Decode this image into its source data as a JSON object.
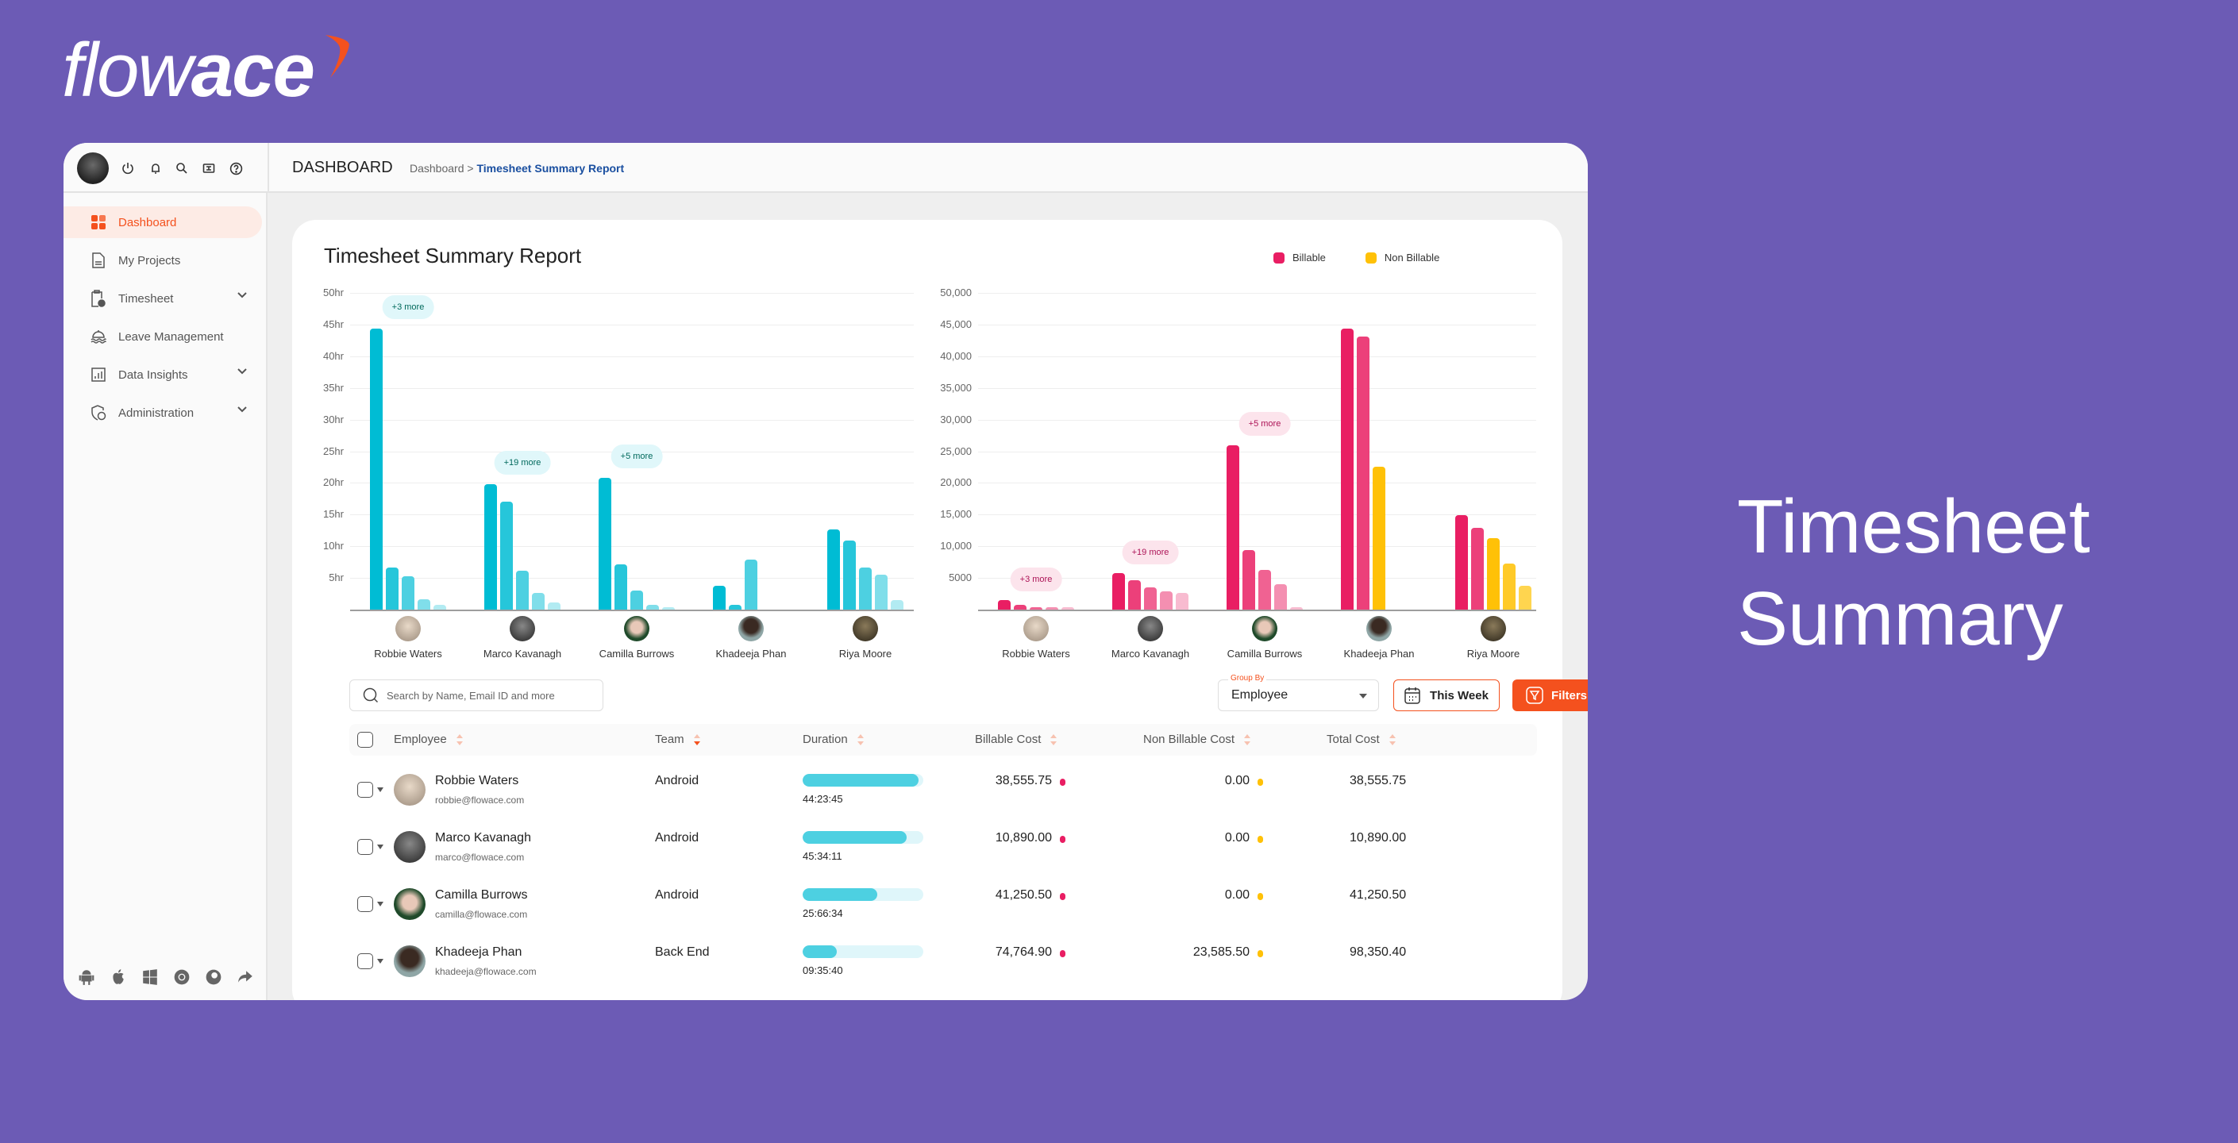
{
  "brand": {
    "logo_part1": "flow",
    "logo_part2": "ace",
    "accent": "#f4511e",
    "background": "#6c5bb5"
  },
  "hero": {
    "line1": "Timesheet",
    "line2": "Summary"
  },
  "topbar": {
    "title": "DASHBOARD",
    "breadcrumb_root": "Dashboard",
    "breadcrumb_sep": ">",
    "breadcrumb_current": "Timesheet Summary Report",
    "icons": [
      "power-icon",
      "bell-icon",
      "search-icon",
      "ticket-icon",
      "help-icon"
    ]
  },
  "sidebar": {
    "items": [
      {
        "label": "Dashboard",
        "icon": "grid-icon",
        "active": true
      },
      {
        "label": "My Projects",
        "icon": "document-icon"
      },
      {
        "label": "Timesheet",
        "icon": "clipboard-clock-icon",
        "expandable": true
      },
      {
        "label": "Leave Management",
        "icon": "beach-icon"
      },
      {
        "label": "Data Insights",
        "icon": "chart-icon",
        "expandable": true
      },
      {
        "label": "Administration",
        "icon": "shield-user-icon",
        "expandable": true
      }
    ],
    "platforms": [
      "android-icon",
      "apple-icon",
      "windows-icon",
      "chrome-icon",
      "firefox-icon",
      "share-icon"
    ]
  },
  "report": {
    "title": "Timesheet Summary Report"
  },
  "chart_data": [
    {
      "type": "bar",
      "ylabel": "",
      "yticks": [
        "5hr",
        "10hr",
        "15hr",
        "20hr",
        "25hr",
        "30hr",
        "35hr",
        "40hr",
        "45hr",
        "50hr"
      ],
      "ylim": [
        0,
        50
      ],
      "unit": "hr",
      "grid": true,
      "categories": [
        "Robbie Waters",
        "Marco Kavanagh",
        "Camilla Burrows",
        "Khadeeja Phan",
        "Riya Moore"
      ],
      "groups": [
        {
          "values": [
            44.3,
            6.6,
            5.3,
            1.6,
            0.7
          ],
          "more": "+3 more"
        },
        {
          "values": [
            19.8,
            17.1,
            6.2,
            2.6,
            1.1
          ],
          "more": "+19 more"
        },
        {
          "values": [
            20.8,
            7.1,
            3.0,
            0.8,
            0.4
          ],
          "more": "+5 more"
        },
        {
          "values": [
            3.7,
            0.8,
            7.9
          ],
          "more": ""
        },
        {
          "values": [
            12.6,
            10.9,
            6.6,
            5.5,
            1.5
          ],
          "more": ""
        }
      ],
      "colors": [
        "#00bcd4",
        "#26c6da",
        "#4dd0e1",
        "#80deea",
        "#b2ebf2"
      ]
    },
    {
      "type": "bar",
      "yticks": [
        "5000",
        "10,000",
        "15,000",
        "20,000",
        "25,000",
        "30,000",
        "35,000",
        "40,000",
        "45,000",
        "50,000"
      ],
      "ylim": [
        0,
        50000
      ],
      "grid": true,
      "legend": [
        {
          "name": "Billable",
          "color": "#e91e63"
        },
        {
          "name": "Non Billable",
          "color": "#ffc107"
        }
      ],
      "legend_position": "top-right",
      "categories": [
        "Robbie Waters",
        "Marco Kavanagh",
        "Camilla Burrows",
        "Khadeeja Phan",
        "Riya Moore"
      ],
      "groups": [
        {
          "values": [
            1500,
            800,
            400,
            400,
            400
          ],
          "series": [
            "Billable",
            "Billable",
            "Billable",
            "Billable",
            "Billable"
          ],
          "more": "+3 more"
        },
        {
          "values": [
            5800,
            4600,
            3500,
            2900,
            2600
          ],
          "series": [
            "Billable",
            "Billable",
            "Billable",
            "Billable",
            "Billable"
          ],
          "more": "+19 more"
        },
        {
          "values": [
            26000,
            9400,
            6300,
            4000,
            400
          ],
          "series": [
            "Billable",
            "Billable",
            "Billable",
            "Billable",
            "Billable"
          ],
          "more": "+5 more"
        },
        {
          "values": [
            44300,
            43100,
            22600
          ],
          "series": [
            "Billable",
            "Billable",
            "Non Billable"
          ],
          "more": ""
        },
        {
          "values": [
            14900,
            12900,
            11300,
            7300,
            3700
          ],
          "series": [
            "Billable",
            "Billable",
            "Non Billable",
            "Non Billable",
            "Non Billable"
          ],
          "more": ""
        }
      ],
      "billable_colors": [
        "#e91e63",
        "#ec407a",
        "#f06292",
        "#f48fb1",
        "#f8bbd0"
      ],
      "nonbillable_colors": [
        "#ffc107",
        "#ffca28",
        "#ffd54f"
      ]
    }
  ],
  "controls": {
    "search_placeholder": "Search by Name, Email ID and more",
    "group_by_label": "Group By",
    "group_by_value": "Employee",
    "date_button": "This Week",
    "filters_button": "Filters"
  },
  "table": {
    "headers": [
      "Employee",
      "Team",
      "Duration",
      "Billable Cost",
      "Non Billable Cost",
      "Total Cost"
    ],
    "rows": [
      {
        "name": "Robbie Waters",
        "email": "robbie@flowace.com",
        "team": "Android",
        "duration": "44:23:45",
        "duration_fraction": 0.96,
        "billable": "38,555.75",
        "nonbillable": "0.00",
        "total": "38,555.75"
      },
      {
        "name": "Marco Kavanagh",
        "email": "marco@flowace.com",
        "team": "Android",
        "duration": "45:34:11",
        "duration_fraction": 0.86,
        "billable": "10,890.00",
        "nonbillable": "0.00",
        "total": "10,890.00"
      },
      {
        "name": "Camilla Burrows",
        "email": "camilla@flowace.com",
        "team": "Android",
        "duration": "25:66:34",
        "duration_fraction": 0.62,
        "billable": "41,250.50",
        "nonbillable": "0.00",
        "total": "41,250.50"
      },
      {
        "name": "Khadeeja Phan",
        "email": "khadeeja@flowace.com",
        "team": "Back End",
        "duration": "09:35:40",
        "duration_fraction": 0.28,
        "billable": "74,764.90",
        "nonbillable": "23,585.50",
        "total": "98,350.40"
      }
    ]
  }
}
